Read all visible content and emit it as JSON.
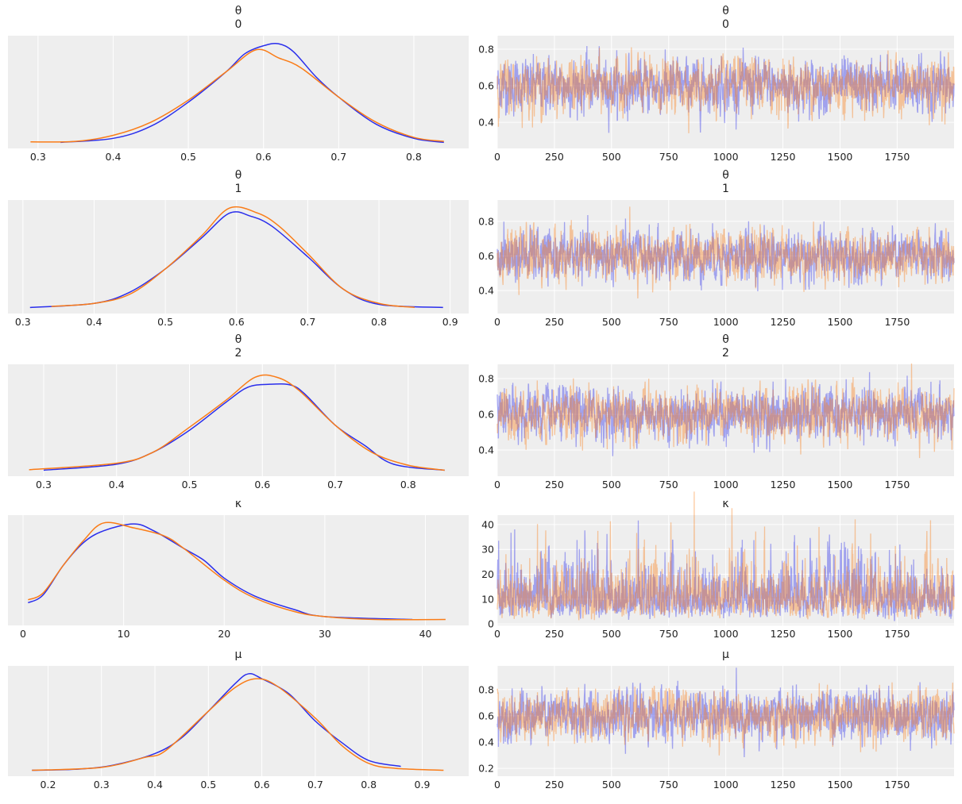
{
  "colors": {
    "chain_0": "#2a2eec",
    "chain_1": "#fa7c17",
    "background": "#eeeeee",
    "grid": "#ffffff"
  },
  "chart_data": [
    {
      "type": "line",
      "panel": "density",
      "title": [
        "θ",
        "0"
      ],
      "xlim": [
        0.26,
        0.873
      ],
      "xticks": [
        0.3,
        0.4,
        0.5,
        0.6,
        0.7,
        0.8
      ],
      "ylabel": "",
      "yticks": [],
      "grid": true,
      "series": [
        {
          "chain": 0,
          "points": [
            [
              0.33,
              0
            ],
            [
              0.4,
              0.04
            ],
            [
              0.45,
              0.16
            ],
            [
              0.5,
              0.4
            ],
            [
              0.55,
              0.7
            ],
            [
              0.575,
              0.88
            ],
            [
              0.6,
              0.96
            ],
            [
              0.62,
              0.98
            ],
            [
              0.64,
              0.9
            ],
            [
              0.67,
              0.65
            ],
            [
              0.7,
              0.45
            ],
            [
              0.75,
              0.18
            ],
            [
              0.8,
              0.04
            ],
            [
              0.84,
              0
            ]
          ]
        },
        {
          "chain": 1,
          "points": [
            [
              0.29,
              0.005
            ],
            [
              0.35,
              0.01
            ],
            [
              0.4,
              0.07
            ],
            [
              0.45,
              0.2
            ],
            [
              0.5,
              0.42
            ],
            [
              0.55,
              0.7
            ],
            [
              0.59,
              0.92
            ],
            [
              0.62,
              0.84
            ],
            [
              0.65,
              0.74
            ],
            [
              0.7,
              0.45
            ],
            [
              0.75,
              0.2
            ],
            [
              0.8,
              0.05
            ],
            [
              0.84,
              0.01
            ]
          ]
        }
      ]
    },
    {
      "type": "line",
      "panel": "trace",
      "title": [
        "θ",
        "0"
      ],
      "xlim": [
        0,
        1999
      ],
      "xticks": [
        0,
        250,
        500,
        750,
        1000,
        1250,
        1500,
        1750
      ],
      "ylim": [
        0.257,
        0.874
      ],
      "yticks": [
        0.4,
        0.6,
        0.8
      ],
      "grid": true,
      "chains": [
        {
          "chain": 0,
          "mean": 0.6,
          "sd": 0.07,
          "draws": 2000
        },
        {
          "chain": 1,
          "mean": 0.6,
          "sd": 0.07,
          "draws": 2000
        }
      ]
    },
    {
      "type": "line",
      "panel": "density",
      "title": [
        "θ",
        "1"
      ],
      "xlim": [
        0.279,
        0.926
      ],
      "xticks": [
        0.3,
        0.4,
        0.5,
        0.6,
        0.7,
        0.8,
        0.9
      ],
      "ylabel": "",
      "yticks": [],
      "grid": true,
      "series": [
        {
          "chain": 0,
          "points": [
            [
              0.31,
              0
            ],
            [
              0.4,
              0.04
            ],
            [
              0.45,
              0.15
            ],
            [
              0.5,
              0.38
            ],
            [
              0.55,
              0.68
            ],
            [
              0.59,
              0.93
            ],
            [
              0.62,
              0.9
            ],
            [
              0.65,
              0.8
            ],
            [
              0.7,
              0.5
            ],
            [
              0.75,
              0.18
            ],
            [
              0.8,
              0.03
            ],
            [
              0.89,
              0
            ]
          ]
        },
        {
          "chain": 1,
          "points": [
            [
              0.34,
              0.01
            ],
            [
              0.4,
              0.04
            ],
            [
              0.45,
              0.13
            ],
            [
              0.5,
              0.38
            ],
            [
              0.55,
              0.7
            ],
            [
              0.59,
              0.98
            ],
            [
              0.63,
              0.93
            ],
            [
              0.66,
              0.8
            ],
            [
              0.7,
              0.53
            ],
            [
              0.75,
              0.18
            ],
            [
              0.8,
              0.04
            ],
            [
              0.85,
              0
            ]
          ]
        }
      ]
    },
    {
      "type": "line",
      "panel": "trace",
      "title": [
        "θ",
        "1"
      ],
      "xlim": [
        0,
        1999
      ],
      "xticks": [
        0,
        250,
        500,
        750,
        1000,
        1250,
        1500,
        1750
      ],
      "ylim": [
        0.268,
        0.923
      ],
      "yticks": [
        0.4,
        0.6,
        0.8
      ],
      "grid": true,
      "chains": [
        {
          "chain": 0,
          "mean": 0.6,
          "sd": 0.07,
          "draws": 2000
        },
        {
          "chain": 1,
          "mean": 0.6,
          "sd": 0.07,
          "draws": 2000
        }
      ]
    },
    {
      "type": "line",
      "panel": "density",
      "title": [
        "θ",
        "2"
      ],
      "xlim": [
        0.251,
        0.883
      ],
      "xticks": [
        0.3,
        0.4,
        0.5,
        0.6,
        0.7,
        0.8
      ],
      "ylabel": "",
      "yticks": [],
      "grid": true,
      "series": [
        {
          "chain": 0,
          "points": [
            [
              0.3,
              0
            ],
            [
              0.4,
              0.06
            ],
            [
              0.45,
              0.18
            ],
            [
              0.5,
              0.4
            ],
            [
              0.55,
              0.68
            ],
            [
              0.58,
              0.83
            ],
            [
              0.61,
              0.86
            ],
            [
              0.64,
              0.85
            ],
            [
              0.66,
              0.75
            ],
            [
              0.7,
              0.45
            ],
            [
              0.74,
              0.25
            ],
            [
              0.78,
              0.06
            ],
            [
              0.85,
              0
            ]
          ]
        },
        {
          "chain": 1,
          "points": [
            [
              0.28,
              0.005
            ],
            [
              0.4,
              0.07
            ],
            [
              0.45,
              0.18
            ],
            [
              0.5,
              0.43
            ],
            [
              0.55,
              0.7
            ],
            [
              0.59,
              0.93
            ],
            [
              0.62,
              0.93
            ],
            [
              0.65,
              0.8
            ],
            [
              0.7,
              0.45
            ],
            [
              0.75,
              0.18
            ],
            [
              0.8,
              0.05
            ],
            [
              0.85,
              0
            ]
          ]
        }
      ]
    },
    {
      "type": "line",
      "panel": "trace",
      "title": [
        "θ",
        "2"
      ],
      "xlim": [
        0,
        1999
      ],
      "xticks": [
        0,
        250,
        500,
        750,
        1000,
        1250,
        1500,
        1750
      ],
      "ylim": [
        0.253,
        0.88
      ],
      "yticks": [
        0.4,
        0.6,
        0.8
      ],
      "grid": true,
      "chains": [
        {
          "chain": 0,
          "mean": 0.6,
          "sd": 0.07,
          "draws": 2000
        },
        {
          "chain": 1,
          "mean": 0.6,
          "sd": 0.07,
          "draws": 2000
        }
      ]
    },
    {
      "type": "line",
      "panel": "density",
      "title": [
        "κ"
      ],
      "xlim": [
        -1.5,
        44.3
      ],
      "xticks": [
        0,
        10,
        20,
        30,
        40
      ],
      "ylabel": "",
      "yticks": [],
      "grid": true,
      "series": [
        {
          "chain": 0,
          "points": [
            [
              0.5,
              0.17
            ],
            [
              2,
              0.25
            ],
            [
              4,
              0.55
            ],
            [
              6,
              0.78
            ],
            [
              8,
              0.9
            ],
            [
              11,
              0.97
            ],
            [
              13,
              0.9
            ],
            [
              16,
              0.72
            ],
            [
              18,
              0.6
            ],
            [
              20,
              0.42
            ],
            [
              23,
              0.24
            ],
            [
              27,
              0.1
            ],
            [
              30,
              0.03
            ],
            [
              38.7,
              0
            ]
          ]
        },
        {
          "chain": 1,
          "points": [
            [
              0.5,
              0.2
            ],
            [
              2,
              0.27
            ],
            [
              4,
              0.55
            ],
            [
              6,
              0.8
            ],
            [
              8,
              0.98
            ],
            [
              11,
              0.93
            ],
            [
              14,
              0.85
            ],
            [
              16,
              0.72
            ],
            [
              20,
              0.4
            ],
            [
              23,
              0.22
            ],
            [
              27,
              0.08
            ],
            [
              30,
              0.03
            ],
            [
              35,
              0
            ],
            [
              42,
              0
            ]
          ]
        }
      ]
    },
    {
      "type": "line",
      "panel": "trace",
      "title": [
        "κ"
      ],
      "xlim": [
        0,
        1999
      ],
      "xticks": [
        0,
        250,
        500,
        750,
        1000,
        1250,
        1500,
        1750
      ],
      "ylim": [
        -0.6,
        43.8
      ],
      "yticks": [
        0,
        10,
        20,
        30,
        40
      ],
      "grid": true,
      "chains": [
        {
          "chain": 0,
          "mean": 12,
          "sd": 6,
          "draws": 2000
        },
        {
          "chain": 1,
          "mean": 12,
          "sd": 6,
          "draws": 2000
        }
      ]
    },
    {
      "type": "line",
      "panel": "density",
      "title": [
        "μ"
      ],
      "xlim": [
        0.125,
        0.987
      ],
      "xticks": [
        0.2,
        0.3,
        0.4,
        0.5,
        0.6,
        0.7,
        0.8,
        0.9
      ],
      "ylabel": "",
      "yticks": [],
      "grid": true,
      "series": [
        {
          "chain": 0,
          "points": [
            [
              0.17,
              0
            ],
            [
              0.25,
              0.01
            ],
            [
              0.32,
              0.05
            ],
            [
              0.4,
              0.17
            ],
            [
              0.45,
              0.33
            ],
            [
              0.5,
              0.6
            ],
            [
              0.55,
              0.88
            ],
            [
              0.575,
              0.98
            ],
            [
              0.6,
              0.93
            ],
            [
              0.65,
              0.78
            ],
            [
              0.7,
              0.5
            ],
            [
              0.75,
              0.28
            ],
            [
              0.8,
              0.1
            ],
            [
              0.86,
              0.04
            ]
          ]
        },
        {
          "chain": 1,
          "points": [
            [
              0.17,
              0
            ],
            [
              0.3,
              0.03
            ],
            [
              0.38,
              0.13
            ],
            [
              0.42,
              0.2
            ],
            [
              0.5,
              0.6
            ],
            [
              0.55,
              0.84
            ],
            [
              0.59,
              0.93
            ],
            [
              0.63,
              0.85
            ],
            [
              0.7,
              0.53
            ],
            [
              0.75,
              0.25
            ],
            [
              0.8,
              0.07
            ],
            [
              0.85,
              0.02
            ],
            [
              0.94,
              0
            ]
          ]
        }
      ]
    },
    {
      "type": "line",
      "panel": "trace",
      "title": [
        "μ"
      ],
      "xlim": [
        0,
        1999
      ],
      "xticks": [
        0,
        250,
        500,
        750,
        1000,
        1250,
        1500,
        1750
      ],
      "ylim": [
        0.14,
        0.98
      ],
      "yticks": [
        0.2,
        0.4,
        0.6,
        0.8
      ],
      "grid": true,
      "chains": [
        {
          "chain": 0,
          "mean": 0.6,
          "sd": 0.09,
          "draws": 2000
        },
        {
          "chain": 1,
          "mean": 0.6,
          "sd": 0.09,
          "draws": 2000
        }
      ]
    }
  ]
}
